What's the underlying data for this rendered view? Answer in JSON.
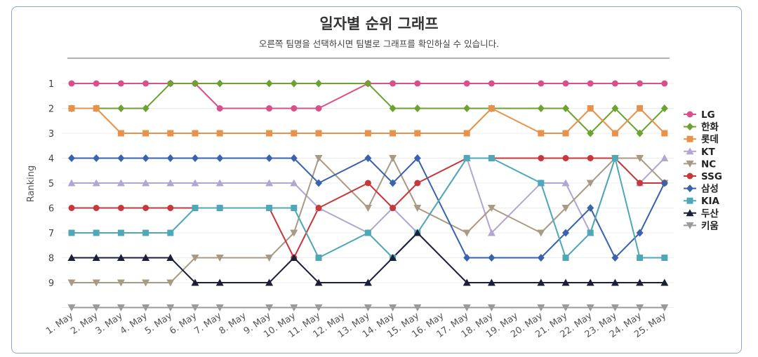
{
  "header": {
    "title": "일자별 순위 그래프",
    "subtitle": "오른쪽 팀명을 선택하시면 팀별로 그래프를 확인하실 수 있습니다."
  },
  "chart_data": {
    "type": "line",
    "title": "일자별 순위 그래프",
    "subtitle": "오른쪽 팀명을 선택하시면 팀별로 그래프를 확인하실 수 있습니다.",
    "ylabel": "Ranking",
    "xlabel": "",
    "ylim": [
      1,
      10
    ],
    "y_inverted": true,
    "yticks": [
      "1",
      "2",
      "3",
      "4",
      "5",
      "6",
      "7",
      "8",
      "9"
    ],
    "grid": true,
    "legend_position": "right",
    "categories": [
      "1. May",
      "2. May",
      "3. May",
      "4. May",
      "5. May",
      "6. May",
      "7. May",
      "8. May",
      "9. May",
      "10. May",
      "11. May",
      "12. May",
      "13. May",
      "14. May",
      "15. May",
      "16. May",
      "17. May",
      "18. May",
      "19. May",
      "20. May",
      "21. May",
      "22. May",
      "23. May",
      "24. May",
      "25. May"
    ],
    "series": [
      {
        "name": "LG",
        "color": "#d94f8a",
        "marker": "circle",
        "values": [
          1,
          1,
          1,
          1,
          1,
          1,
          2,
          null,
          2,
          2,
          2,
          null,
          1,
          1,
          1,
          null,
          1,
          1,
          null,
          1,
          1,
          1,
          1,
          1,
          1
        ]
      },
      {
        "name": "한화",
        "color": "#6aa32e",
        "marker": "diamond",
        "values": [
          2,
          2,
          2,
          2,
          1,
          1,
          1,
          null,
          1,
          1,
          1,
          null,
          1,
          2,
          2,
          null,
          2,
          2,
          null,
          2,
          2,
          3,
          2,
          3,
          2
        ]
      },
      {
        "name": "롯데",
        "color": "#e8914a",
        "marker": "square",
        "values": [
          2,
          2,
          3,
          3,
          3,
          3,
          3,
          null,
          3,
          3,
          3,
          null,
          3,
          3,
          3,
          null,
          3,
          2,
          null,
          3,
          3,
          2,
          3,
          2,
          3
        ]
      },
      {
        "name": "KT",
        "color": "#b3a6d2",
        "marker": "triangle-up",
        "values": [
          5,
          5,
          5,
          5,
          5,
          5,
          5,
          null,
          5,
          5,
          6,
          null,
          7,
          6,
          7,
          null,
          4,
          7,
          null,
          5,
          5,
          7,
          4,
          5,
          4
        ]
      },
      {
        "name": "NC",
        "color": "#a99a83",
        "marker": "triangle-down",
        "values": [
          9,
          9,
          9,
          9,
          9,
          8,
          8,
          null,
          8,
          7,
          4,
          null,
          6,
          4,
          6,
          null,
          7,
          6,
          null,
          7,
          6,
          5,
          4,
          4,
          5
        ]
      },
      {
        "name": "SSG",
        "color": "#c8373b",
        "marker": "circle",
        "values": [
          6,
          6,
          6,
          6,
          6,
          6,
          null,
          null,
          6,
          8,
          6,
          null,
          5,
          6,
          5,
          null,
          4,
          4,
          null,
          4,
          4,
          4,
          4,
          5,
          5
        ]
      },
      {
        "name": "삼성",
        "color": "#3a63ad",
        "marker": "diamond",
        "values": [
          4,
          4,
          4,
          4,
          4,
          4,
          4,
          null,
          4,
          4,
          5,
          null,
          4,
          5,
          4,
          null,
          8,
          8,
          null,
          8,
          7,
          6,
          8,
          7,
          5
        ]
      },
      {
        "name": "KIA",
        "color": "#4fa8b8",
        "marker": "square",
        "values": [
          7,
          7,
          7,
          7,
          7,
          6,
          6,
          null,
          6,
          6,
          8,
          null,
          7,
          8,
          7,
          null,
          4,
          4,
          null,
          5,
          8,
          7,
          4,
          8,
          8
        ]
      },
      {
        "name": "두산",
        "color": "#1c1f3a",
        "marker": "triangle-up",
        "values": [
          8,
          8,
          8,
          8,
          8,
          9,
          9,
          null,
          9,
          8,
          9,
          null,
          9,
          8,
          7,
          null,
          9,
          9,
          null,
          9,
          9,
          9,
          9,
          9,
          9
        ]
      },
      {
        "name": "키움",
        "color": "#9a9a9a",
        "marker": "triangle-down",
        "values": [
          10,
          10,
          10,
          10,
          10,
          10,
          10,
          null,
          10,
          10,
          10,
          null,
          10,
          10,
          10,
          null,
          10,
          10,
          null,
          10,
          10,
          10,
          10,
          10,
          10
        ]
      }
    ]
  }
}
